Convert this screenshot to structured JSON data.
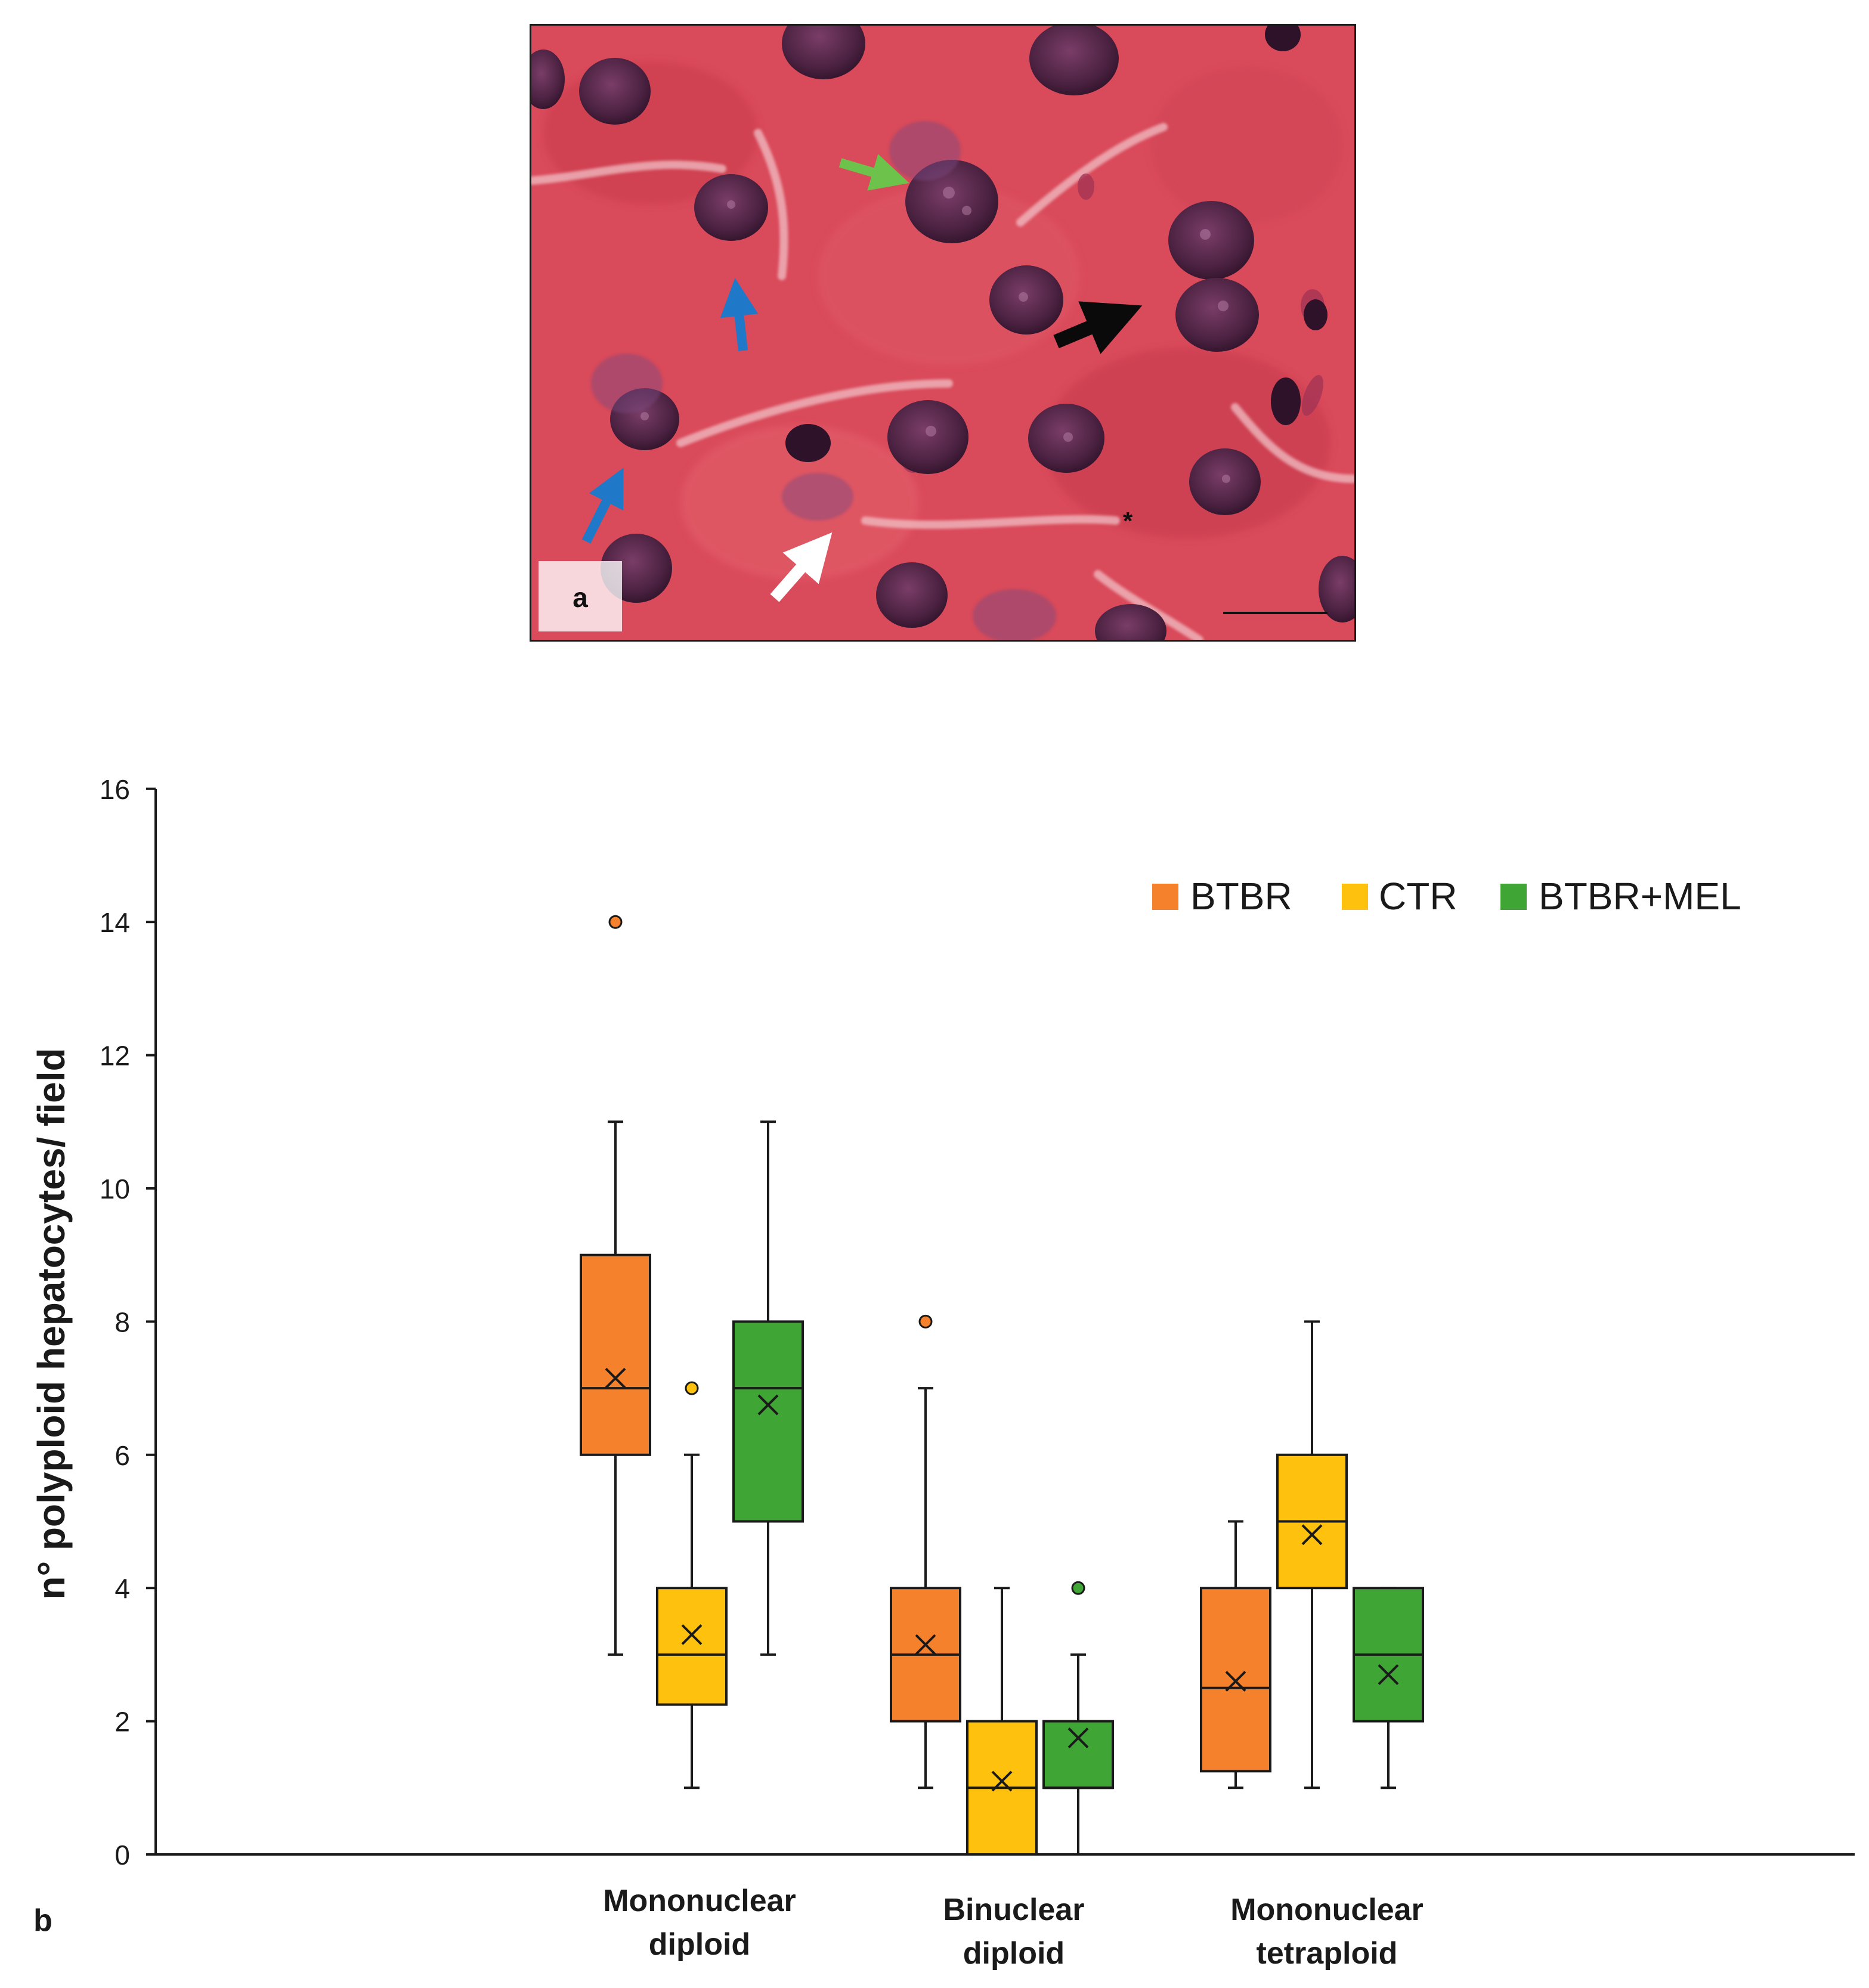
{
  "panel_a": {
    "label": "a",
    "scale_bar_mark": "scale-bar",
    "asterisk": "*",
    "arrow_colors": {
      "green": "#6cc24a",
      "blue": "#1f78c8",
      "black": "#0a0a0a",
      "white": "#ffffff"
    },
    "tissue_color": "#d94a5a",
    "nucleus_color": "#4a2140"
  },
  "panel_b_label": "b",
  "colors": {
    "BTBR": "#f5812c",
    "CTR": "#fec10e",
    "BTBR+MEL": "#3fa535",
    "outline": "#1a1a1a"
  },
  "chart_data": {
    "type": "box",
    "title": "",
    "ylabel": "n° polyploid hepatocytes/ field",
    "ylim": [
      0,
      16
    ],
    "yticks": [
      0,
      2,
      4,
      6,
      8,
      10,
      12,
      14,
      16
    ],
    "ytick_labels": [
      "0",
      "2",
      "4",
      "6",
      "8",
      "10",
      "12",
      "14",
      "16"
    ],
    "legend_position": "top-right",
    "legend": [
      "BTBR",
      "CTR",
      "BTBR+MEL"
    ],
    "categories": [
      {
        "line1": "Mononuclear",
        "line2": "diploid"
      },
      {
        "line1": "Binuclear",
        "line2": "diploid"
      },
      {
        "line1": "Mononuclear",
        "line2": "tetraploid"
      }
    ],
    "series": [
      {
        "name": "BTBR",
        "boxes": [
          {
            "min": 3,
            "q1": 6,
            "median": 7,
            "q3": 9,
            "max": 11,
            "mean": 7.15,
            "outliers": [
              14
            ]
          },
          {
            "min": 1,
            "q1": 2,
            "median": 3,
            "q3": 4,
            "max": 7,
            "mean": 3.15,
            "outliers": [
              8
            ]
          },
          {
            "min": 1,
            "q1": 1.25,
            "median": 2.5,
            "q3": 4,
            "max": 5,
            "mean": 2.6,
            "outliers": []
          }
        ]
      },
      {
        "name": "CTR",
        "boxes": [
          {
            "min": 1,
            "q1": 2.25,
            "median": 3,
            "q3": 4,
            "max": 6,
            "mean": 3.3,
            "outliers": [
              7
            ]
          },
          {
            "min": 0,
            "q1": 0,
            "median": 1,
            "q3": 2,
            "max": 4,
            "mean": 1.1,
            "outliers": []
          },
          {
            "min": 1,
            "q1": 4,
            "median": 5,
            "q3": 6,
            "max": 8,
            "mean": 4.8,
            "outliers": []
          }
        ]
      },
      {
        "name": "BTBR+MEL",
        "boxes": [
          {
            "min": 3,
            "q1": 5,
            "median": 7,
            "q3": 8,
            "max": 11,
            "mean": 6.75,
            "outliers": []
          },
          {
            "min": 0,
            "q1": 1,
            "median": 1,
            "q3": 2,
            "max": 3,
            "mean": 1.75,
            "outliers": [
              4
            ]
          },
          {
            "min": 1,
            "q1": 2,
            "median": 3,
            "q3": 4,
            "max": 4,
            "mean": 2.7,
            "outliers": []
          }
        ]
      }
    ]
  }
}
